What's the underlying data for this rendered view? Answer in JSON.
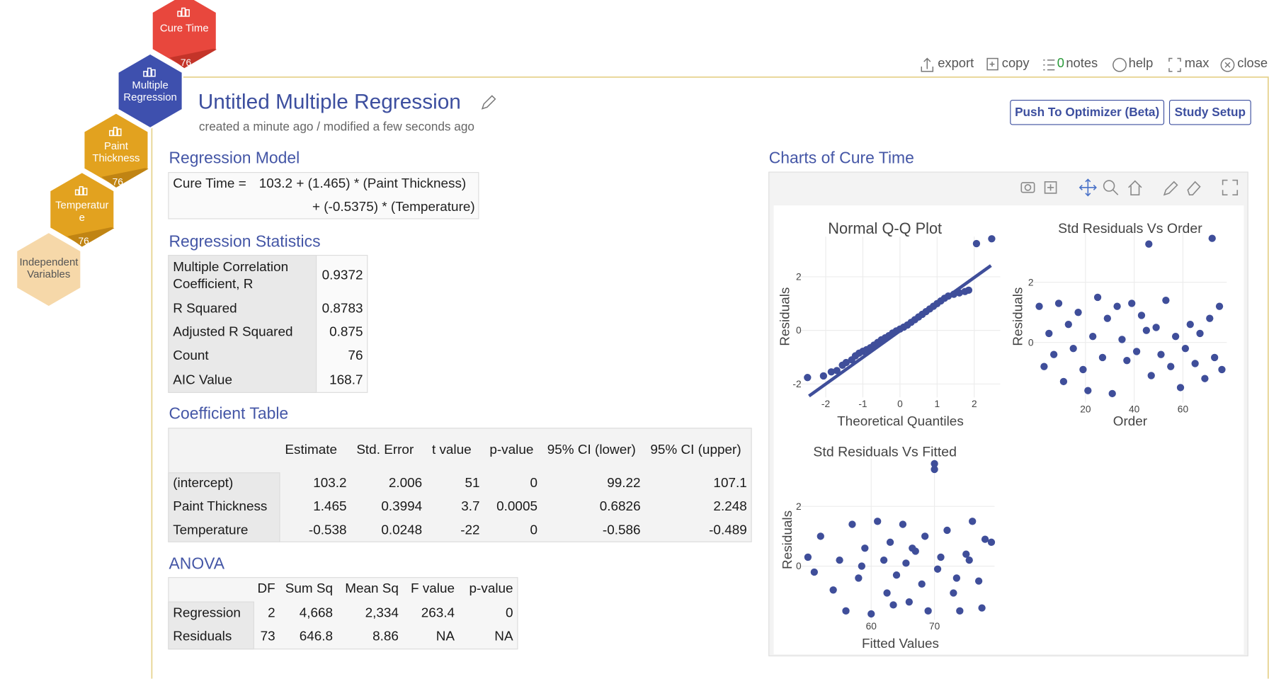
{
  "toolbar": {
    "export": "export",
    "copy": "copy",
    "notes_count": 0,
    "notes": "notes",
    "help": "help",
    "max": "max",
    "close": "close"
  },
  "nav": [
    {
      "label": "Cure Time",
      "count": 76
    },
    {
      "label": "Multiple Regression"
    },
    {
      "label": "Paint Thickness",
      "count": 76
    },
    {
      "label": "Temperature",
      "count": 76
    },
    {
      "label": "Independent Variables"
    }
  ],
  "header": {
    "title": "Untitled Multiple Regression",
    "subtitle": "created a minute ago / modified a few seconds ago",
    "buttons": [
      "Push To Optimizer (Beta)",
      "Study Setup"
    ]
  },
  "model": {
    "heading": "Regression Model",
    "lhs": "Cure Time =",
    "terms": [
      "103.2 + (1.465) * (Paint Thickness)",
      "+ (-0.5375) * (Temperature)"
    ]
  },
  "statistics": {
    "heading": "Regression Statistics",
    "rows": [
      [
        "Multiple Correlation Coefficient, R",
        0.9372
      ],
      [
        "R Squared",
        0.8783
      ],
      [
        "Adjusted R Squared",
        0.875
      ],
      [
        "Count",
        76
      ],
      [
        "AIC Value",
        168.7
      ]
    ]
  },
  "coefficients": {
    "heading": "Coefficient Table",
    "columns": [
      "Estimate",
      "Std. Error",
      "t value",
      "p-value",
      "95% CI (lower)",
      "95% CI (upper)"
    ],
    "rows": [
      [
        "(intercept)",
        103.2,
        2.006,
        51,
        0,
        99.22,
        107.1
      ],
      [
        "Paint Thickness",
        1.465,
        0.3994,
        3.7,
        0.0005,
        0.6826,
        2.248
      ],
      [
        "Temperature",
        -0.538,
        0.0248,
        -22,
        0,
        -0.586,
        -0.489
      ]
    ]
  },
  "anova": {
    "heading": "ANOVA",
    "columns": [
      "DF",
      "Sum Sq",
      "Mean Sq",
      "F value",
      "p-value"
    ],
    "rows": [
      [
        "Regression",
        2,
        "4,668",
        "2,334",
        263.4,
        0
      ],
      [
        "Residuals",
        73,
        646.8,
        8.86,
        "NA",
        "NA"
      ]
    ]
  },
  "charts": {
    "heading": "Charts of Cure Time",
    "plots": [
      {
        "type": "scatter",
        "title": "Normal Q-Q Plot",
        "xlabel": "Theoretical Quantiles",
        "ylabel": "Residuals",
        "color": "#3f4e9a",
        "xlim": [
          -2.7,
          2.7
        ],
        "ylim": [
          -2.5,
          3.5
        ],
        "xticks": [
          -2,
          -1,
          0,
          1,
          2
        ],
        "yticks": [
          -2,
          0,
          2
        ],
        "fit_line": {
          "x": [
            -2.45,
            2.45
          ],
          "y": [
            -2.45,
            2.42
          ]
        },
        "x": [
          -2.49,
          -2.06,
          -1.85,
          -1.7,
          -1.55,
          -1.45,
          -1.3,
          -1.2,
          -1.1,
          -1.0,
          -0.9,
          -0.8,
          -0.7,
          -0.6,
          -0.5,
          -0.4,
          -0.3,
          -0.2,
          -0.1,
          0,
          0.1,
          0.2,
          0.3,
          0.4,
          0.5,
          0.6,
          0.7,
          0.8,
          0.9,
          1.0,
          1.1,
          1.2,
          1.3,
          1.45,
          1.6,
          1.75,
          1.85,
          2.06,
          2.47
        ],
        "y": [
          -1.76,
          -1.7,
          -1.55,
          -1.5,
          -1.3,
          -1.2,
          -1.1,
          -0.95,
          -0.85,
          -0.78,
          -0.72,
          -0.65,
          -0.55,
          -0.45,
          -0.35,
          -0.28,
          -0.2,
          -0.1,
          -0.02,
          0.05,
          0.12,
          0.2,
          0.3,
          0.4,
          0.5,
          0.6,
          0.7,
          0.8,
          0.9,
          1.0,
          1.1,
          1.2,
          1.28,
          1.35,
          1.4,
          1.45,
          1.5,
          3.24,
          3.42
        ]
      },
      {
        "type": "scatter",
        "title": "Std Residuals Vs Order",
        "xlabel": "Order",
        "ylabel": "Residuals",
        "color": "#3f4e9a",
        "xlim": [
          -2,
          78
        ],
        "ylim": [
          -2.0,
          3.8
        ],
        "xticks": [
          20,
          40,
          60
        ],
        "yticks": [
          0,
          2
        ],
        "x": [
          1,
          3,
          5,
          7,
          9,
          11,
          13,
          15,
          17,
          19,
          21,
          23,
          25,
          27,
          29,
          31,
          33,
          35,
          37,
          39,
          41,
          43,
          45,
          46,
          47,
          49,
          51,
          53,
          55,
          57,
          59,
          61,
          63,
          65,
          67,
          69,
          71,
          72,
          73,
          75,
          76
        ],
        "y": [
          1.2,
          -0.8,
          0.3,
          -0.4,
          1.3,
          -1.3,
          0.6,
          -0.2,
          1.0,
          -0.9,
          -1.6,
          0.2,
          1.5,
          -0.5,
          0.8,
          -1.7,
          1.2,
          0.1,
          -0.6,
          1.3,
          -0.3,
          0.9,
          0.4,
          3.27,
          -1.1,
          0.5,
          -0.4,
          1.4,
          -0.8,
          0.2,
          -1.5,
          -0.2,
          0.6,
          -0.7,
          0.3,
          -1.2,
          0.8,
          3.46,
          -0.5,
          1.2,
          -0.9
        ]
      },
      {
        "type": "scatter",
        "title": "Std Residuals Vs Fitted",
        "xlabel": "Fitted Values",
        "ylabel": "Residuals",
        "color": "#3f4e9a",
        "xlim": [
          48.7,
          79.5
        ],
        "ylim": [
          -1.8,
          3.6
        ],
        "xticks": [
          60,
          70
        ],
        "yticks": [
          0,
          2
        ],
        "x": [
          50,
          51,
          52,
          54,
          55,
          56,
          57,
          58,
          59,
          60,
          61,
          62,
          62.5,
          63,
          64,
          65,
          65.5,
          66,
          67,
          68,
          68.5,
          69,
          70,
          70,
          70.5,
          71,
          72,
          73,
          74,
          75,
          76,
          77,
          78,
          79,
          58.5,
          63.5,
          66.5,
          73.5,
          75.5,
          77.5
        ],
        "y": [
          0.3,
          -0.2,
          1.0,
          -0.8,
          0.2,
          -1.5,
          1.4,
          -0.4,
          0.6,
          -1.6,
          1.5,
          0.2,
          -0.9,
          0.8,
          -0.3,
          1.4,
          0.1,
          -1.2,
          0.5,
          -0.6,
          1.0,
          -1.5,
          3.43,
          3.24,
          -0.1,
          0.3,
          1.2,
          -0.9,
          -1.5,
          0.4,
          1.5,
          -0.5,
          0.9,
          0.8,
          0.0,
          -1.3,
          0.6,
          -0.4,
          0.2,
          -1.4
        ]
      }
    ]
  }
}
